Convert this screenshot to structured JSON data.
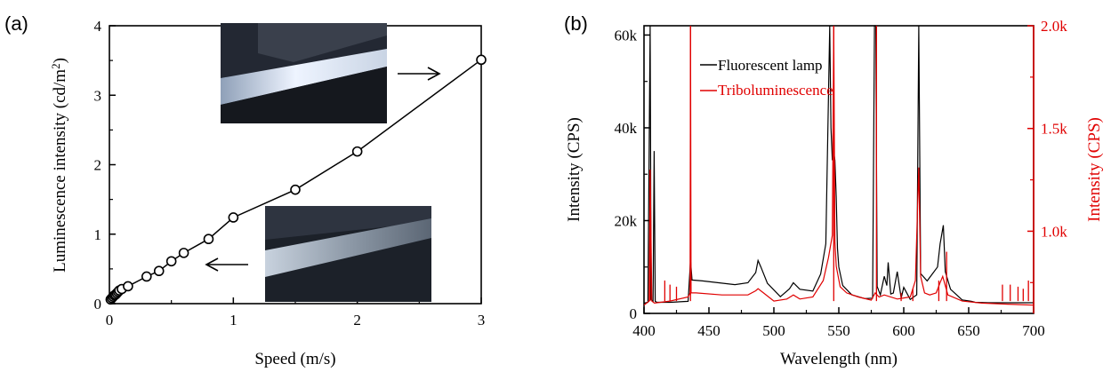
{
  "panel_a": {
    "panel_label": "(a)",
    "chart_data": {
      "type": "line",
      "xlabel": "Speed (m/s)",
      "ylabel": "Luminescence intensity (cd/m",
      "ylabel_sup": "2",
      "ylabel_close": ")",
      "xlim": [
        0,
        3
      ],
      "ylim": [
        0,
        4
      ],
      "x_ticks": [
        0,
        1,
        2,
        3
      ],
      "y_ticks": [
        0,
        1,
        2,
        3,
        4
      ],
      "markers": "open-circle",
      "series": [
        {
          "x": [
            0.01,
            0.02,
            0.03,
            0.04,
            0.05,
            0.06,
            0.07,
            0.08,
            0.1,
            0.15,
            0.3,
            0.4,
            0.5,
            0.6,
            0.8,
            1.0,
            1.5,
            2.0,
            3.0
          ],
          "y": [
            0.06,
            0.08,
            0.1,
            0.12,
            0.13,
            0.15,
            0.17,
            0.19,
            0.21,
            0.25,
            0.39,
            0.47,
            0.61,
            0.73,
            0.93,
            1.24,
            1.64,
            2.19,
            3.51
          ]
        }
      ],
      "insets": [
        {
          "name": "bright-inset",
          "arrow": "right"
        },
        {
          "name": "dim-inset",
          "arrow": "left"
        }
      ]
    }
  },
  "panel_b": {
    "panel_label": "(b)",
    "chart_data": {
      "type": "line",
      "xlabel": "Wavelength (nm)",
      "ylabel_left": "Intensity (CPS)",
      "ylabel_right": "Intensity (CPS)",
      "xlim": [
        400,
        700
      ],
      "ylim_left": [
        0,
        62000
      ],
      "ylim_right": [
        600,
        2000
      ],
      "x_ticks": [
        400,
        450,
        500,
        550,
        600,
        650,
        700
      ],
      "y_ticks_left": [
        {
          "v": 0,
          "label": "0"
        },
        {
          "v": 20000,
          "label": "20k"
        },
        {
          "v": 40000,
          "label": "40k"
        },
        {
          "v": 60000,
          "label": "60k"
        }
      ],
      "y_ticks_right": [
        {
          "v": 1000,
          "label": "1.0k"
        },
        {
          "v": 1500,
          "label": "1.5k"
        },
        {
          "v": 2000,
          "label": "2.0k"
        }
      ],
      "colors": {
        "lamp": "#000000",
        "tribo": "#e00000"
      },
      "legend_position": "top-left",
      "series": [
        {
          "name": "Fluorescent lamp",
          "axis": "left",
          "x": [
            400,
            403,
            404.7,
            405.5,
            407,
            407.8,
            408.6,
            410,
            420,
            434,
            435.8,
            437,
            445,
            470,
            480,
            486,
            487.8,
            490,
            495,
            505,
            512,
            515,
            520,
            530,
            536,
            540,
            543,
            544,
            545,
            546,
            547,
            548,
            549,
            550,
            553,
            560,
            570,
            576,
            577.5,
            578.5,
            579.5,
            582,
            585,
            587,
            588,
            590,
            592,
            595,
            598,
            600,
            605,
            610,
            611.6,
            613,
            618,
            622,
            626,
            628,
            630.5,
            632,
            636,
            645,
            652,
            655,
            665,
            680,
            700
          ],
          "y": [
            2200,
            2400,
            62000,
            3000,
            2600,
            35000,
            2600,
            2400,
            2400,
            2600,
            11500,
            7200,
            7000,
            6200,
            6600,
            8800,
            11400,
            10000,
            6500,
            3600,
            5300,
            6600,
            5200,
            4800,
            8500,
            15000,
            62000,
            40000,
            33000,
            35000,
            33000,
            25000,
            14000,
            10000,
            6000,
            4000,
            3200,
            3300,
            62000,
            62000,
            5800,
            4000,
            8000,
            6000,
            11000,
            4200,
            4400,
            9000,
            3300,
            5600,
            3000,
            4000,
            62000,
            8600,
            7000,
            8500,
            10000,
            15000,
            19000,
            9000,
            5200,
            2900,
            2600,
            2400,
            2300,
            2300,
            2300
          ]
        },
        {
          "name": "Triboluminescence",
          "axis": "right",
          "x": [
            400,
            404,
            404.7,
            406,
            408,
            420,
            434,
            435.5,
            435.8,
            436.2,
            440,
            460,
            480,
            486,
            487.8,
            492,
            500,
            510,
            515,
            520,
            530,
            538,
            542,
            545,
            546.1,
            547,
            548,
            551,
            556,
            565,
            575,
            578,
            581,
            585,
            595,
            605,
            609,
            611.6,
            613,
            616,
            620,
            625,
            628,
            630,
            634,
            645,
            660,
            680,
            700
          ],
          "y": [
            640,
            660,
            1300,
            660,
            650,
            660,
            680,
            700,
            2000,
            700,
            700,
            690,
            690,
            710,
            720,
            700,
            660,
            670,
            690,
            670,
            680,
            760,
            870,
            980,
            2000,
            950,
            830,
            730,
            700,
            680,
            665,
            700,
            680,
            690,
            670,
            680,
            760,
            1310,
            780,
            700,
            690,
            700,
            750,
            780,
            690,
            660,
            650,
            645,
            640
          ]
        }
      ],
      "spikes_right": [
        {
          "x": 404.7,
          "y": 1300
        },
        {
          "x": 416,
          "y": 760
        },
        {
          "x": 420,
          "y": 740
        },
        {
          "x": 425,
          "y": 730
        },
        {
          "x": 435.8,
          "y": 2000
        },
        {
          "x": 546.1,
          "y": 2000
        },
        {
          "x": 579,
          "y": 2000
        },
        {
          "x": 598,
          "y": 700
        },
        {
          "x": 607,
          "y": 720
        },
        {
          "x": 627,
          "y": 760
        },
        {
          "x": 633,
          "y": 900
        },
        {
          "x": 676,
          "y": 740
        },
        {
          "x": 682,
          "y": 740
        },
        {
          "x": 688,
          "y": 730
        },
        {
          "x": 692,
          "y": 720
        },
        {
          "x": 696,
          "y": 760
        }
      ]
    }
  }
}
